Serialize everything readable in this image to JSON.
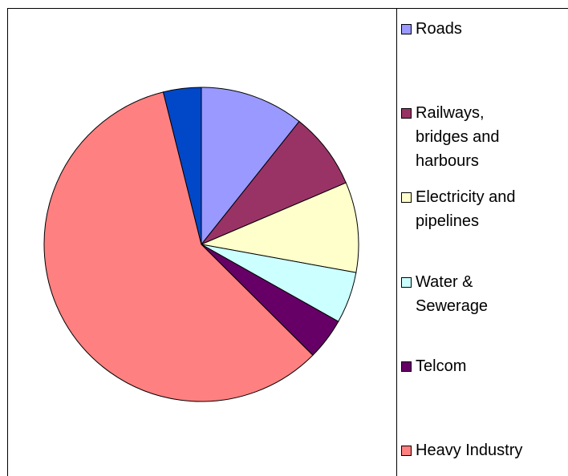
{
  "chart_data": {
    "type": "pie",
    "categories": [
      "Roads",
      "Railways, bridges and harbours",
      "Electricity and pipelines",
      "Water & Sewerage",
      "Telcom",
      "Heavy Industry",
      null
    ],
    "values": [
      10.7,
      7.9,
      9.3,
      5.3,
      4.3,
      58.7,
      3.9
    ],
    "colors": [
      "#9999ff",
      "#993366",
      "#ffffcc",
      "#ccffff",
      "#660066",
      "#ff8080",
      "#0048c8"
    ]
  }
}
